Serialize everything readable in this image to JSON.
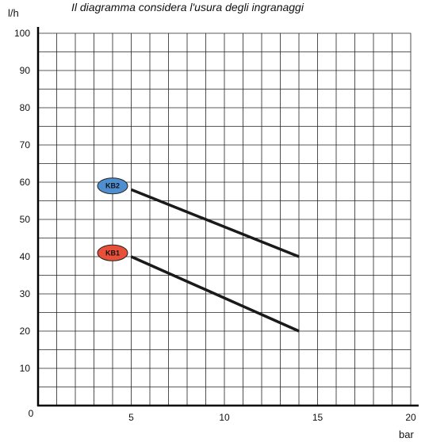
{
  "chart_data": {
    "type": "line",
    "title": "Il diagramma  considera l'usura degli ingranaggi",
    "xlabel": "bar",
    "ylabel": "l/h",
    "xlim": [
      0,
      20
    ],
    "ylim": [
      0,
      100
    ],
    "x_ticks": [
      0,
      5,
      10,
      15,
      20
    ],
    "y_ticks": [
      10,
      20,
      30,
      40,
      50,
      60,
      70,
      80,
      90,
      100
    ],
    "x_minor_step": 1,
    "y_minor_step": 5,
    "grid": true,
    "series": [
      {
        "name": "KB2",
        "color": "#4f8fd0",
        "x": [
          5,
          14
        ],
        "y": [
          58,
          40
        ],
        "label_at": [
          4,
          59
        ]
      },
      {
        "name": "KB1",
        "color": "#e8503a",
        "x": [
          5,
          14
        ],
        "y": [
          40,
          20
        ],
        "label_at": [
          4,
          41
        ]
      }
    ]
  }
}
